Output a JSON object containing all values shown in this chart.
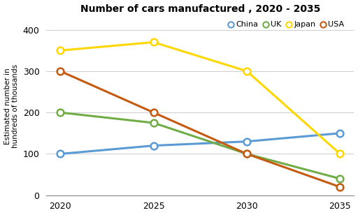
{
  "title": "Number of cars manufactured , 2020 - 2035",
  "ylabel": "Estimated number in\nhundreds of thousands",
  "years": [
    2020,
    2025,
    2030,
    2035
  ],
  "series": {
    "China": {
      "values": [
        100,
        120,
        130,
        150
      ],
      "color": "#5b9bd5",
      "marker": "o"
    },
    "UK": {
      "values": [
        200,
        175,
        100,
        40
      ],
      "color": "#70ad47",
      "marker": "o"
    },
    "Japan": {
      "values": [
        350,
        370,
        300,
        100
      ],
      "color": "#ffd700",
      "marker": "o"
    },
    "USA": {
      "values": [
        300,
        200,
        100,
        20
      ],
      "color": "#c55a11",
      "marker": "o"
    }
  },
  "ylim": [
    0,
    430
  ],
  "yticks": [
    0,
    100,
    200,
    300,
    400
  ],
  "background_color": "#ffffff",
  "grid_color": "#d0d0d0",
  "title_fontsize": 10,
  "legend_order": [
    "China",
    "UK",
    "Japan",
    "USA"
  ]
}
